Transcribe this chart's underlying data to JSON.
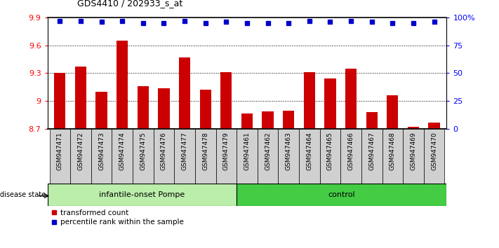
{
  "title": "GDS4410 / 202933_s_at",
  "samples": [
    "GSM947471",
    "GSM947472",
    "GSM947473",
    "GSM947474",
    "GSM947475",
    "GSM947476",
    "GSM947477",
    "GSM947478",
    "GSM947479",
    "GSM947461",
    "GSM947462",
    "GSM947463",
    "GSM947464",
    "GSM947465",
    "GSM947466",
    "GSM947467",
    "GSM947468",
    "GSM947469",
    "GSM947470"
  ],
  "transformed_counts": [
    9.3,
    9.37,
    9.1,
    9.65,
    9.16,
    9.14,
    9.47,
    9.12,
    9.31,
    8.87,
    8.89,
    8.9,
    9.31,
    9.24,
    9.35,
    8.88,
    9.06,
    8.72,
    8.77
  ],
  "percentile_ranks": [
    97,
    97,
    96,
    97,
    95,
    95,
    97,
    95,
    96,
    95,
    95,
    95,
    97,
    96,
    97,
    96,
    95,
    95,
    96
  ],
  "ylim_left": [
    8.7,
    9.9
  ],
  "ylim_right": [
    0,
    100
  ],
  "yticks_left": [
    8.7,
    9.0,
    9.3,
    9.6,
    9.9
  ],
  "yticks_right": [
    0,
    25,
    50,
    75,
    100
  ],
  "ytick_labels_left": [
    "8.7",
    "9",
    "9.3",
    "9.6",
    "9.9"
  ],
  "ytick_labels_right": [
    "0",
    "25",
    "50",
    "75",
    "100%"
  ],
  "bar_color": "#cc0000",
  "dot_color": "#0000cc",
  "group1_label": "infantile-onset Pompe",
  "group2_label": "control",
  "group1_color": "#bbeeaa",
  "group2_color": "#44cc44",
  "group1_count": 9,
  "group2_count": 10,
  "disease_state_label": "disease state",
  "legend_bar_label": "transformed count",
  "legend_dot_label": "percentile rank within the sample",
  "background_color": "#ffffff",
  "xtick_bg_color": "#d0d0d0"
}
